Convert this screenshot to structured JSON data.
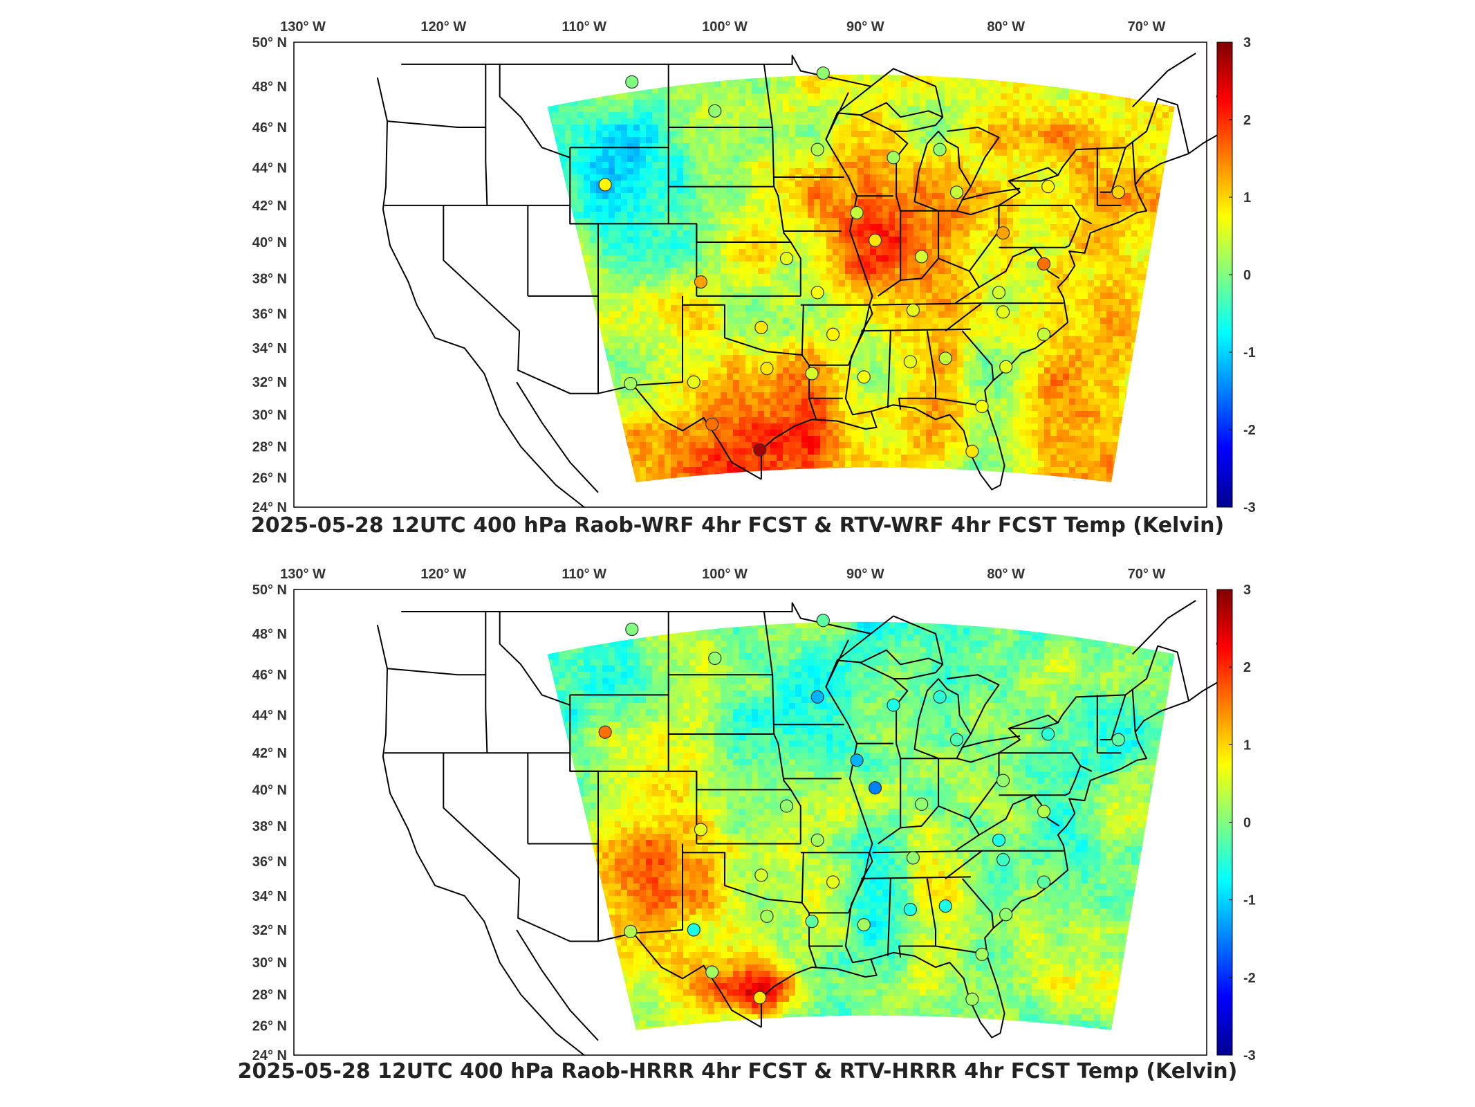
{
  "colors": {
    "colormap": [
      "#00008f",
      "#0000ff",
      "#0080ff",
      "#00ffff",
      "#80ff80",
      "#ffff00",
      "#ff8000",
      "#ff0000",
      "#800000"
    ],
    "borders": "#000000",
    "frame": "#000000"
  },
  "axes": {
    "lon_labels": [
      "130° W",
      "120° W",
      "110° W",
      "100° W",
      "90° W",
      "80° W",
      "70° W"
    ],
    "lat_labels": [
      "50° N",
      "48° N",
      "46° N",
      "44° N",
      "42° N",
      "40° N",
      "38° N",
      "36° N",
      "34° N",
      "32° N",
      "30° N",
      "28° N",
      "26° N",
      "24° N"
    ]
  },
  "colorbar": {
    "ticks": [
      "3",
      "2",
      "1",
      "0",
      "-1",
      "-2",
      "-3"
    ],
    "range": [
      -3,
      3
    ]
  },
  "panels": [
    {
      "title": "2025-05-28 12UTC 400 hPa Raob-WRF 4hr FCST & RTV-WRF 4hr FCST Temp (Kelvin)",
      "field_tendency": "warm",
      "stations": [
        {
          "lon": -106.6,
          "lat": 48.2,
          "value": 0.0
        },
        {
          "lon": -100.7,
          "lat": 46.8,
          "value": 0.1
        },
        {
          "lon": -93.0,
          "lat": 48.6,
          "value": 0.1
        },
        {
          "lon": -93.4,
          "lat": 44.9,
          "value": 0.3
        },
        {
          "lon": -88.0,
          "lat": 44.5,
          "value": 0.2
        },
        {
          "lon": -84.7,
          "lat": 44.9,
          "value": 0.1
        },
        {
          "lon": -108.5,
          "lat": 43.1,
          "value": 0.8
        },
        {
          "lon": -83.5,
          "lat": 42.7,
          "value": 0.4
        },
        {
          "lon": -77.0,
          "lat": 43.0,
          "value": 0.8
        },
        {
          "lon": -72.0,
          "lat": 42.7,
          "value": 1.0
        },
        {
          "lon": -90.6,
          "lat": 41.6,
          "value": 0.4
        },
        {
          "lon": -89.3,
          "lat": 40.1,
          "value": 0.9
        },
        {
          "lon": -80.2,
          "lat": 40.5,
          "value": 1.3
        },
        {
          "lon": -86.0,
          "lat": 39.2,
          "value": 0.5
        },
        {
          "lon": -95.6,
          "lat": 39.1,
          "value": 0.6
        },
        {
          "lon": -101.7,
          "lat": 37.8,
          "value": 1.3
        },
        {
          "lon": -93.4,
          "lat": 37.2,
          "value": 0.7
        },
        {
          "lon": -77.3,
          "lat": 38.8,
          "value": 1.6
        },
        {
          "lon": -80.5,
          "lat": 37.2,
          "value": 0.5
        },
        {
          "lon": -86.6,
          "lat": 36.2,
          "value": 0.6
        },
        {
          "lon": -80.2,
          "lat": 36.1,
          "value": 0.6
        },
        {
          "lon": -97.4,
          "lat": 35.2,
          "value": 0.9
        },
        {
          "lon": -92.3,
          "lat": 34.8,
          "value": 0.8
        },
        {
          "lon": -77.3,
          "lat": 34.8,
          "value": 0.4
        },
        {
          "lon": -97.0,
          "lat": 32.8,
          "value": 0.9
        },
        {
          "lon": -86.8,
          "lat": 33.2,
          "value": 0.6
        },
        {
          "lon": -84.3,
          "lat": 33.4,
          "value": 0.4
        },
        {
          "lon": -80.0,
          "lat": 32.9,
          "value": 0.6
        },
        {
          "lon": -93.8,
          "lat": 32.5,
          "value": 0.5
        },
        {
          "lon": -90.1,
          "lat": 32.3,
          "value": 0.7
        },
        {
          "lon": -106.7,
          "lat": 31.9,
          "value": 0.2
        },
        {
          "lon": -102.2,
          "lat": 32.0,
          "value": 0.6
        },
        {
          "lon": -81.7,
          "lat": 30.5,
          "value": 0.7
        },
        {
          "lon": -100.9,
          "lat": 29.4,
          "value": 1.6
        },
        {
          "lon": -97.5,
          "lat": 27.8,
          "value": 2.8
        },
        {
          "lon": -82.4,
          "lat": 27.7,
          "value": 0.9
        }
      ]
    },
    {
      "title": "2025-05-28 12UTC 400 hPa Raob-HRRR 4hr FCST & RTV-HRRR 4hr FCST Temp (Kelvin)",
      "field_tendency": "cool",
      "stations": [
        {
          "lon": -106.6,
          "lat": 48.2,
          "value": 0.0
        },
        {
          "lon": -100.7,
          "lat": 46.8,
          "value": 0.1
        },
        {
          "lon": -93.0,
          "lat": 48.6,
          "value": -0.2
        },
        {
          "lon": -93.4,
          "lat": 44.9,
          "value": -1.2
        },
        {
          "lon": -88.0,
          "lat": 44.5,
          "value": -0.6
        },
        {
          "lon": -84.7,
          "lat": 44.9,
          "value": -0.5
        },
        {
          "lon": -108.5,
          "lat": 43.1,
          "value": 1.6
        },
        {
          "lon": -83.5,
          "lat": 42.7,
          "value": -0.3
        },
        {
          "lon": -77.0,
          "lat": 43.0,
          "value": -0.5
        },
        {
          "lon": -72.0,
          "lat": 42.7,
          "value": -0.2
        },
        {
          "lon": -90.6,
          "lat": 41.6,
          "value": -1.2
        },
        {
          "lon": -89.3,
          "lat": 40.1,
          "value": -1.5
        },
        {
          "lon": -80.2,
          "lat": 40.5,
          "value": 0.1
        },
        {
          "lon": -86.0,
          "lat": 39.2,
          "value": 0.1
        },
        {
          "lon": -95.6,
          "lat": 39.1,
          "value": 0.1
        },
        {
          "lon": -101.7,
          "lat": 37.8,
          "value": 0.6
        },
        {
          "lon": -93.4,
          "lat": 37.2,
          "value": 0.2
        },
        {
          "lon": -77.3,
          "lat": 38.8,
          "value": 0.3
        },
        {
          "lon": -80.5,
          "lat": 37.2,
          "value": -0.6
        },
        {
          "lon": -86.6,
          "lat": 36.2,
          "value": 0.1
        },
        {
          "lon": -80.2,
          "lat": 36.1,
          "value": -0.4
        },
        {
          "lon": -97.4,
          "lat": 35.2,
          "value": 0.5
        },
        {
          "lon": -92.3,
          "lat": 34.8,
          "value": 0.6
        },
        {
          "lon": -77.3,
          "lat": 34.8,
          "value": -0.2
        },
        {
          "lon": -97.0,
          "lat": 32.8,
          "value": 0.2
        },
        {
          "lon": -86.8,
          "lat": 33.2,
          "value": -0.6
        },
        {
          "lon": -84.3,
          "lat": 33.4,
          "value": -0.6
        },
        {
          "lon": -80.0,
          "lat": 32.9,
          "value": 0.1
        },
        {
          "lon": -93.8,
          "lat": 32.5,
          "value": -0.2
        },
        {
          "lon": -90.1,
          "lat": 32.3,
          "value": 0.2
        },
        {
          "lon": -106.7,
          "lat": 31.9,
          "value": 0.3
        },
        {
          "lon": -102.2,
          "lat": 32.0,
          "value": -0.6
        },
        {
          "lon": -81.7,
          "lat": 30.5,
          "value": 0.2
        },
        {
          "lon": -100.9,
          "lat": 29.4,
          "value": 0.2
        },
        {
          "lon": -97.5,
          "lat": 27.8,
          "value": 0.9
        },
        {
          "lon": -82.4,
          "lat": 27.7,
          "value": 0.2
        }
      ]
    }
  ]
}
